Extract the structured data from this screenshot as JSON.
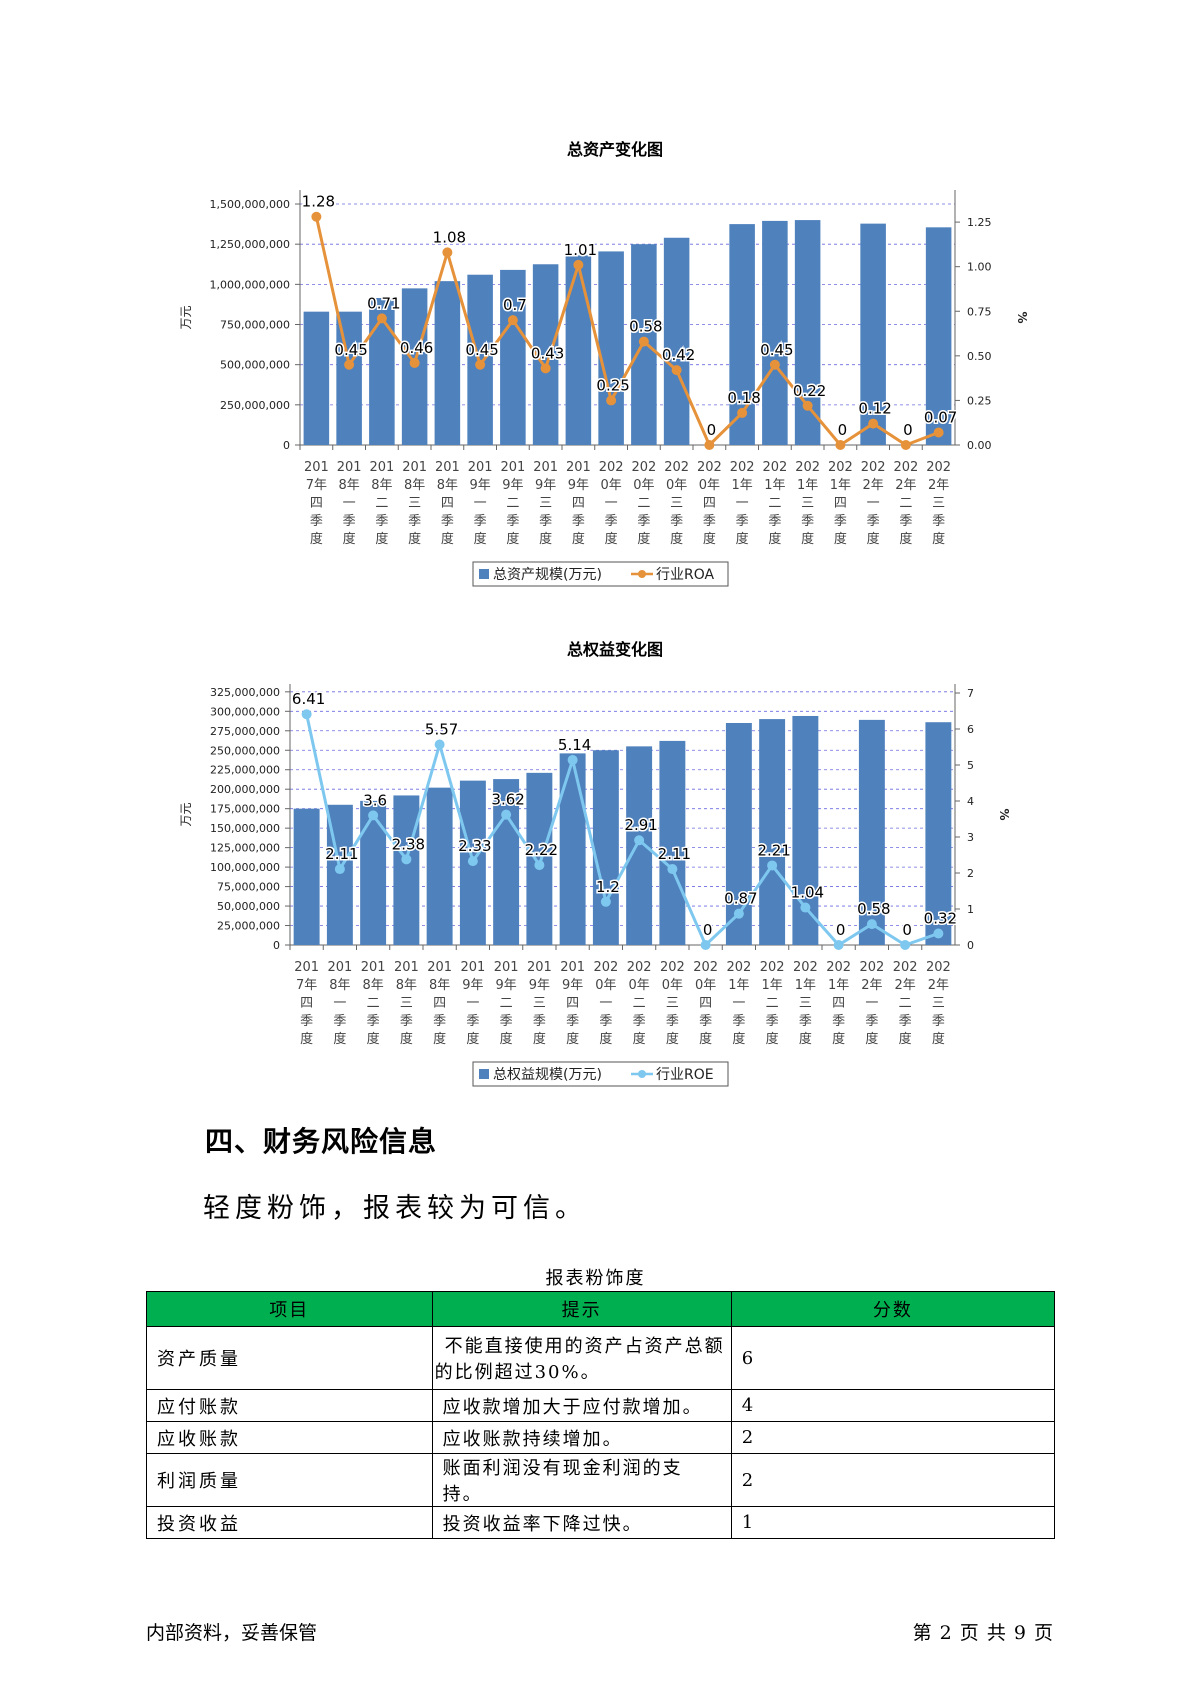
{
  "chart_data": [
    {
      "type": "bar",
      "title": "总资产变化图",
      "ylabel": "万元",
      "y2label": "%",
      "categories": [
        "2017年四季度",
        "2018年一季度",
        "2018年二季度",
        "2018年三季度",
        "2018年四季度",
        "2019年一季度",
        "2019年二季度",
        "2019年三季度",
        "2019年四季度",
        "2020年一季度",
        "2020年二季度",
        "2020年三季度",
        "2020年四季度",
        "2021年一季度",
        "2021年二季度",
        "2021年三季度",
        "2021年四季度",
        "2022年一季度",
        "2022年二季度",
        "2022年三季度"
      ],
      "category_labels": [
        "201\n7年\n四\n季\n度",
        "201\n8年\n一\n季\n度",
        "201\n8年\n二\n季\n度",
        "201\n8年\n三\n季\n度",
        "201\n8年\n四\n季\n度",
        "201\n9年\n一\n季\n度",
        "201\n9年\n二\n季\n度",
        "201\n9年\n三\n季\n度",
        "201\n9年\n四\n季\n度",
        "202\n0年\n一\n季\n度",
        "202\n0年\n二\n季\n度",
        "202\n0年\n三\n季\n度",
        "202\n0年\n四\n季\n度",
        "202\n1年\n一\n季\n度",
        "202\n1年\n二\n季\n度",
        "202\n1年\n三\n季\n度",
        "202\n1年\n四\n季\n度",
        "202\n2年\n一\n季\n度",
        "202\n2年\n二\n季\n度",
        "202\n2年\n三\n季\n度"
      ],
      "series": [
        {
          "name": "总资产规模(万元)",
          "kind": "bar",
          "axis": "left",
          "values": [
            830000000,
            830000000,
            915000000,
            975000000,
            1020000000,
            1060000000,
            1090000000,
            1125000000,
            1180000000,
            1205000000,
            1250000000,
            1290000000,
            null,
            1375000000,
            1395000000,
            1400000000,
            null,
            1378000000,
            null,
            1355000000
          ]
        },
        {
          "name": "行业ROA",
          "kind": "line",
          "axis": "right",
          "values": [
            1.28,
            0.45,
            0.71,
            0.46,
            1.08,
            0.45,
            0.7,
            0.43,
            1.01,
            0.25,
            0.58,
            0.42,
            0,
            0.18,
            0.45,
            0.22,
            0,
            0.12,
            0,
            0.07
          ],
          "labels": [
            "1.28",
            "0.45",
            "0.71",
            "0.46",
            "1.08",
            "0.45",
            "0.7",
            "0.43",
            "1.01",
            "0.25",
            "0.58",
            "0.42",
            "0",
            "0.18",
            "0.45",
            "0.22",
            "0",
            "0.12",
            "0",
            "0.07"
          ]
        }
      ],
      "ylim": [
        0,
        1500000000
      ],
      "yticks": [
        "0",
        "250,000,000",
        "500,000,000",
        "750,000,000",
        "1,000,000,000",
        "1,250,000,000",
        "1,500,000,000"
      ],
      "y2lim": [
        0,
        1.25
      ],
      "y2ticks": [
        "0.00",
        "0.25",
        "0.50",
        "0.75",
        "1.00",
        "1.25"
      ],
      "legend": [
        "总资产规模(万元)",
        "行业ROA"
      ],
      "legend_position": "bottom",
      "grid": true,
      "colors": {
        "bar": "#4f81bd",
        "line": "#e6923a"
      }
    },
    {
      "type": "bar",
      "title": "总权益变化图",
      "ylabel": "万元",
      "y2label": "%",
      "categories": [
        "2017年四季度",
        "2018年一季度",
        "2018年二季度",
        "2018年三季度",
        "2018年四季度",
        "2019年一季度",
        "2019年二季度",
        "2019年三季度",
        "2019年四季度",
        "2020年一季度",
        "2020年二季度",
        "2020年三季度",
        "2020年四季度",
        "2021年一季度",
        "2021年二季度",
        "2021年三季度",
        "2021年四季度",
        "2022年一季度",
        "2022年二季度",
        "2022年三季度"
      ],
      "category_labels": [
        "201\n7年\n四\n季\n度",
        "201\n8年\n一\n季\n度",
        "201\n8年\n二\n季\n度",
        "201\n8年\n三\n季\n度",
        "201\n8年\n四\n季\n度",
        "201\n9年\n一\n季\n度",
        "201\n9年\n二\n季\n度",
        "201\n9年\n三\n季\n度",
        "201\n9年\n四\n季\n度",
        "202\n0年\n一\n季\n度",
        "202\n0年\n二\n季\n度",
        "202\n0年\n三\n季\n度",
        "202\n0年\n四\n季\n度",
        "202\n1年\n一\n季\n度",
        "202\n1年\n二\n季\n度",
        "202\n1年\n三\n季\n度",
        "202\n1年\n四\n季\n度",
        "202\n2年\n一\n季\n度",
        "202\n2年\n二\n季\n度",
        "202\n2年\n三\n季\n度"
      ],
      "series": [
        {
          "name": "总权益规模(万元)",
          "kind": "bar",
          "axis": "left",
          "values": [
            175000000,
            180000000,
            185000000,
            192000000,
            202000000,
            211000000,
            213000000,
            221000000,
            246000000,
            250000000,
            255000000,
            262000000,
            null,
            285000000,
            290000000,
            294000000,
            null,
            289000000,
            null,
            286000000
          ]
        },
        {
          "name": "行业ROE",
          "kind": "line",
          "axis": "right",
          "values": [
            6.41,
            2.11,
            3.6,
            2.38,
            5.57,
            2.33,
            3.62,
            2.22,
            5.14,
            1.2,
            2.91,
            2.11,
            0,
            0.87,
            2.21,
            1.04,
            0,
            0.58,
            0,
            0.32
          ],
          "labels": [
            "6.41",
            "2.11",
            "3.6",
            "2.38",
            "5.57",
            "2.33",
            "3.62",
            "2.22",
            "5.14",
            "1.2",
            "2.91",
            "2.11",
            "0",
            "0.87",
            "2.21",
            "1.04",
            "0",
            "0.58",
            "0",
            "0.32"
          ]
        }
      ],
      "ylim": [
        0,
        325000000
      ],
      "yticks": [
        "0",
        "25,000,000",
        "50,000,000",
        "75,000,000",
        "100,000,000",
        "125,000,000",
        "150,000,000",
        "175,000,000",
        "200,000,000",
        "225,000,000",
        "250,000,000",
        "275,000,000",
        "300,000,000",
        "325,000,000"
      ],
      "y2lim": [
        0,
        7
      ],
      "y2ticks": [
        "0",
        "1",
        "2",
        "3",
        "4",
        "5",
        "6",
        "7"
      ],
      "legend": [
        "总权益规模(万元)",
        "行业ROE"
      ],
      "legend_position": "bottom",
      "grid": true,
      "colors": {
        "bar": "#4f81bd",
        "line": "#7ec8f0"
      }
    }
  ],
  "section": {
    "heading": "四、财务风险信息",
    "body": "轻度粉饰，报表较为可信。"
  },
  "table": {
    "caption": "报表粉饰度",
    "headers": [
      "项目",
      "提示",
      "分数"
    ],
    "rows": [
      {
        "item": "资产质量",
        "hint_line1": "不能直接使用的资产占资产总额",
        "hint_line2": "的比例超过30%。",
        "score": "6"
      },
      {
        "item": "应付账款",
        "hint": "应收款增加大于应付款增加。",
        "score": "4"
      },
      {
        "item": "应收账款",
        "hint": "应收账款持续增加。",
        "score": "2"
      },
      {
        "item": "利润质量",
        "hint": "账面利润没有现金利润的支持。",
        "score": "2"
      },
      {
        "item": "投资收益",
        "hint": "投资收益率下降过快。",
        "score": "1"
      }
    ]
  },
  "footer": {
    "left": "内部资料，妥善保管",
    "right": "第 2 页  共 9 页"
  }
}
